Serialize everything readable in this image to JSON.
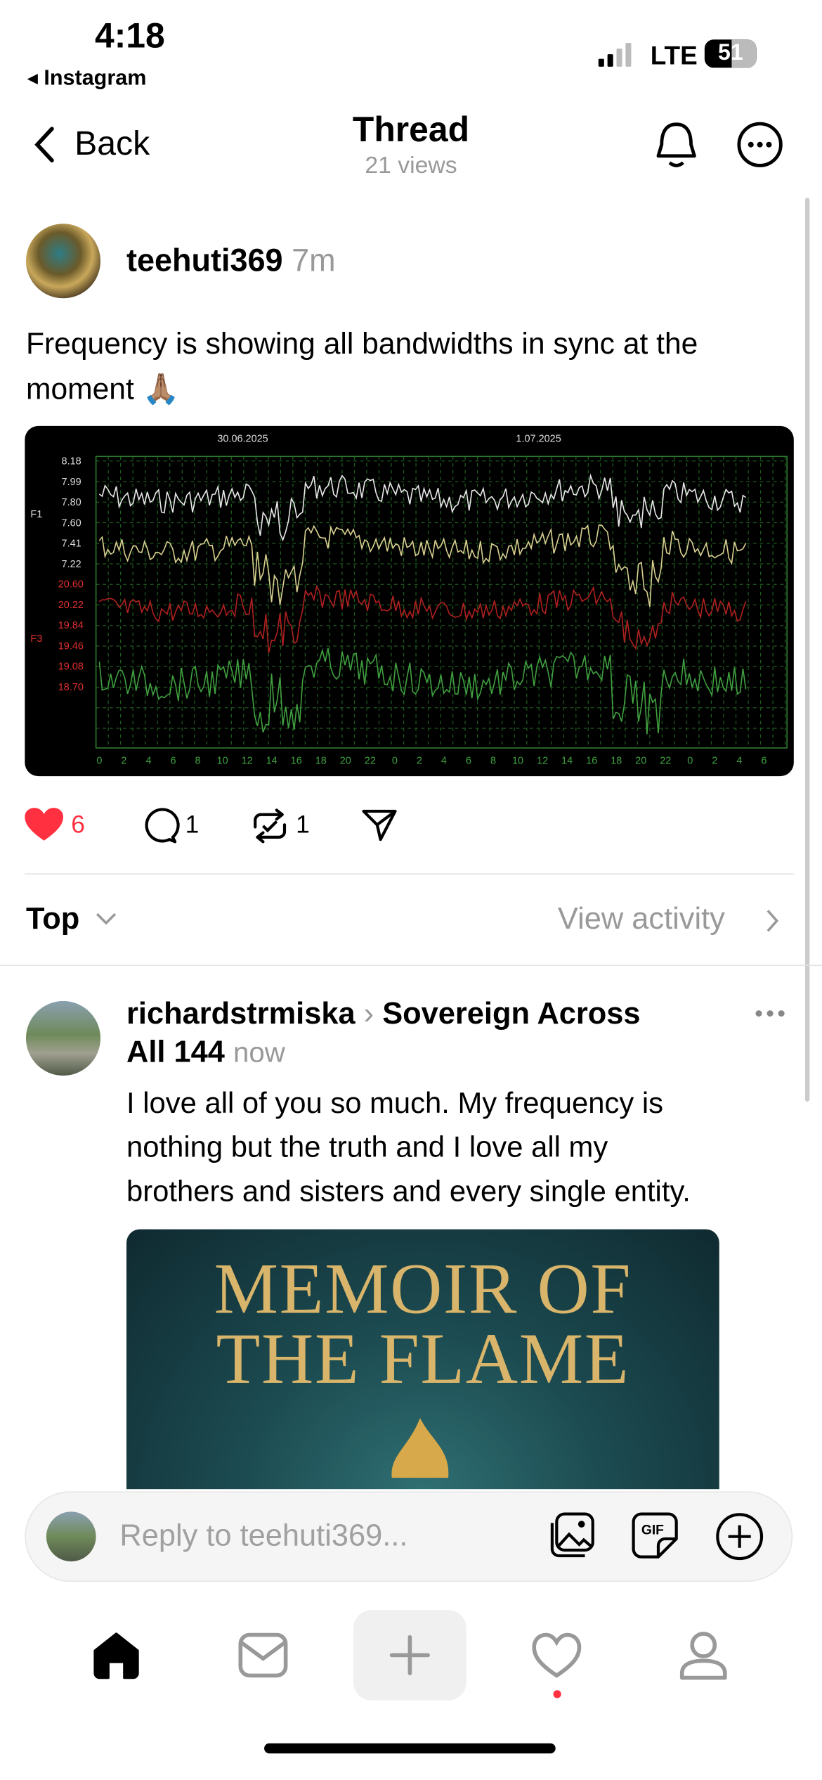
{
  "status": {
    "time": "4:18",
    "back_app": "Instagram",
    "network": "LTE",
    "battery": "51"
  },
  "header": {
    "back": "Back",
    "title": "Thread",
    "views": "21 views"
  },
  "post": {
    "username": "teehuti369",
    "time": "7m",
    "text": "Frequency is showing all bandwidths in sync at the moment 🙏🏽",
    "image": {
      "dates": [
        "30.06.2025",
        "1.07.2025"
      ],
      "series_labels": [
        "F1",
        "F3"
      ],
      "f1_labels": [
        "8.18",
        "7.99",
        "7.80",
        "7.60",
        "7.41",
        "7.22"
      ],
      "f3_labels": [
        "20.60",
        "20.22",
        "19.84",
        "19.46",
        "19.08",
        "18.70"
      ],
      "hour_labels": [
        0,
        2,
        4,
        6,
        8,
        10,
        12,
        14,
        16,
        18,
        20,
        22,
        0,
        2,
        4,
        6,
        8,
        10,
        12,
        14,
        16,
        18,
        20,
        22,
        0,
        2,
        4,
        6
      ]
    },
    "likes": "6",
    "comments": "1",
    "reposts": "1"
  },
  "sort": {
    "label": "Top",
    "activity": "View activity"
  },
  "reply": {
    "username": "richardstrmiska",
    "community": "Sovereign Across",
    "community_rest": "All 144",
    "time": "now",
    "text_lines": [
      "I love all of you so much. My frequency is",
      "nothing but the truth and I love all my",
      "brothers and sisters and every single entity."
    ],
    "image_lines": [
      "MEMOIR OF",
      "THE FLAME"
    ]
  },
  "composer": {
    "placeholder": "Reply to teehuti369...",
    "gif_label": "GIF"
  }
}
